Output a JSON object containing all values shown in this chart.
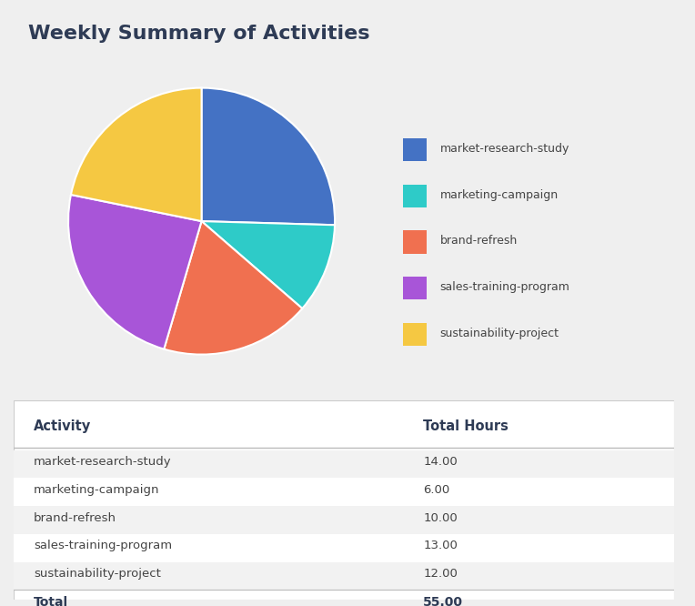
{
  "title": "Weekly Summary of Activities",
  "activities": [
    "market-research-study",
    "marketing-campaign",
    "brand-refresh",
    "sales-training-program",
    "sustainability-project"
  ],
  "hours": [
    14.0,
    6.0,
    10.0,
    13.0,
    12.0
  ],
  "total": 55.0,
  "colors": [
    "#4472C4",
    "#2ECBC8",
    "#F07050",
    "#A855D8",
    "#F5C842"
  ],
  "bg_color": "#EFEFEF",
  "title_color": "#2E3B55",
  "text_color": "#444444",
  "legend_labels": [
    "market-research-study",
    "marketing-campaign",
    "brand-refresh",
    "sales-training-program",
    "sustainability-project"
  ]
}
